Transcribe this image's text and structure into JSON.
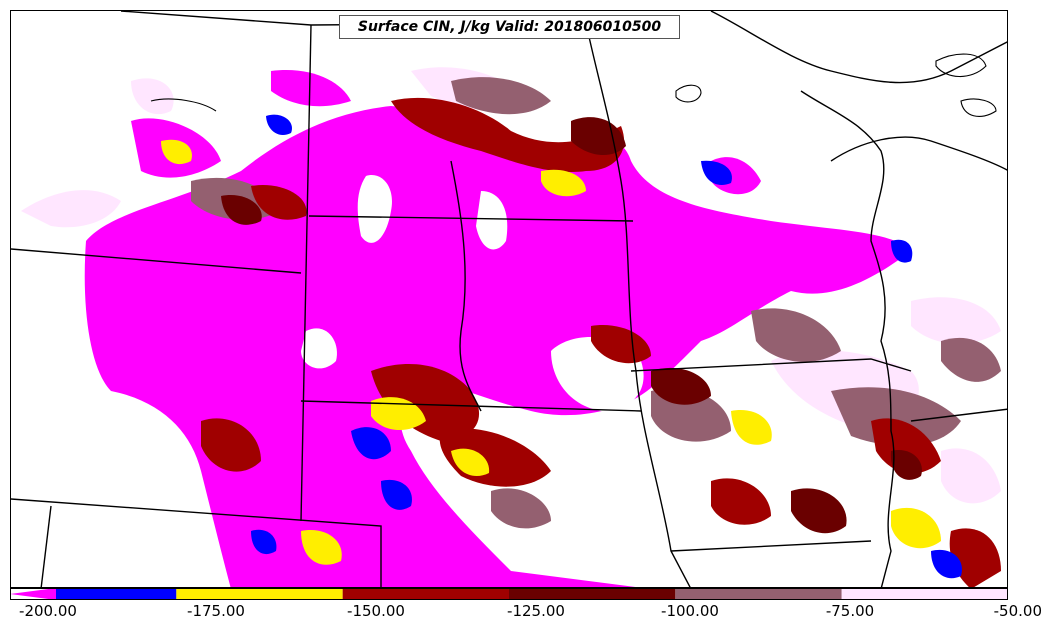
{
  "title": "Surface CIN, J/kg Valid: 201806010500",
  "legend": {
    "ticks": [
      "-200.00",
      "-175.00",
      "-150.00",
      "-125.00",
      "-100.00",
      "-75.00",
      "-50.00"
    ],
    "bins": [
      {
        "from": -200,
        "to": -175,
        "color": "#0000ff"
      },
      {
        "from": -175,
        "to": -150,
        "color": "#ffee00"
      },
      {
        "from": -150,
        "to": -125,
        "color": "#a00000"
      },
      {
        "from": -125,
        "to": -100,
        "color": "#6a0000"
      },
      {
        "from": -100,
        "to": -75,
        "color": "#946070"
      },
      {
        "from": -75,
        "to": -50,
        "color": "#ffe6ff"
      }
    ],
    "below_min_color": "#ff00ff"
  },
  "colors": {
    "magenta": "#ff00ff",
    "blue": "#0000ff",
    "yellow": "#ffee00",
    "red": "#a00000",
    "dark_red": "#6a0000",
    "mauve": "#946070",
    "pink": "#ffe6ff"
  }
}
